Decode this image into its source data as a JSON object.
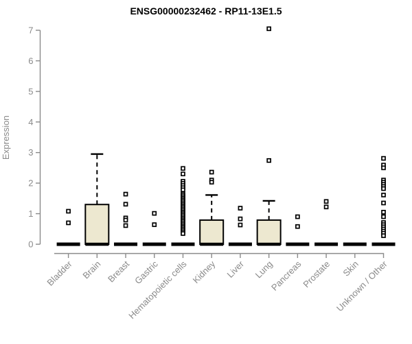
{
  "chart_data": {
    "type": "boxplot",
    "title": "ENSG00000232462 - RP11-13E1.5",
    "ylabel": "Expression",
    "xlabel": "",
    "ylim": [
      0,
      7
    ],
    "yticks": [
      0,
      1,
      2,
      3,
      4,
      5,
      6,
      7
    ],
    "grid": false,
    "legend": null,
    "categories": [
      "Bladder",
      "Brain",
      "Breast",
      "Gastric",
      "Hematopoietic cells",
      "Kidney",
      "Liver",
      "Lung",
      "Pancreas",
      "Prostate",
      "Skin",
      "Unknown / Other"
    ],
    "boxes": [
      {
        "category": "Bladder",
        "q1": 0,
        "median": 0,
        "q3": 0,
        "whisker_low": 0,
        "whisker_high": 0,
        "outliers": [
          1.08,
          0.7
        ]
      },
      {
        "category": "Brain",
        "q1": 0,
        "median": 0,
        "q3": 1.3,
        "whisker_low": 0,
        "whisker_high": 2.95,
        "outliers": []
      },
      {
        "category": "Breast",
        "q1": 0,
        "median": 0,
        "q3": 0,
        "whisker_low": 0,
        "whisker_high": 0,
        "outliers": [
          1.64,
          1.31,
          0.86,
          0.79,
          0.61
        ]
      },
      {
        "category": "Gastric",
        "q1": 0,
        "median": 0,
        "q3": 0,
        "whisker_low": 0,
        "whisker_high": 0,
        "outliers": [
          1.01,
          0.64
        ]
      },
      {
        "category": "Hematopoietic cells",
        "q1": 0,
        "median": 0,
        "q3": 0,
        "whisker_low": 0,
        "whisker_high": 0,
        "outliers": [
          2.48,
          2.3,
          2.06,
          1.99,
          1.92,
          1.85,
          1.78,
          1.65,
          1.6,
          1.55,
          1.5,
          1.45,
          1.4,
          1.35,
          1.3,
          1.25,
          1.2,
          1.15,
          1.1,
          1.05,
          1.0,
          0.95,
          0.9,
          0.85,
          0.8,
          0.75,
          0.7,
          0.65,
          0.6,
          0.55,
          0.5,
          0.45,
          0.4,
          0.35
        ]
      },
      {
        "category": "Kidney",
        "q1": 0,
        "median": 0,
        "q3": 0.79,
        "whisker_low": 0,
        "whisker_high": 1.61,
        "outliers": [
          2.36,
          2.1,
          2.03
        ]
      },
      {
        "category": "Liver",
        "q1": 0,
        "median": 0,
        "q3": 0,
        "whisker_low": 0,
        "whisker_high": 0,
        "outliers": [
          1.18,
          0.83,
          0.63
        ]
      },
      {
        "category": "Lung",
        "q1": 0,
        "median": 0,
        "q3": 0.79,
        "whisker_low": 0,
        "whisker_high": 1.42,
        "outliers": [
          7.05,
          2.74
        ]
      },
      {
        "category": "Pancreas",
        "q1": 0,
        "median": 0,
        "q3": 0,
        "whisker_low": 0,
        "whisker_high": 0,
        "outliers": [
          0.9,
          0.58
        ]
      },
      {
        "category": "Prostate",
        "q1": 0,
        "median": 0,
        "q3": 0,
        "whisker_low": 0,
        "whisker_high": 0,
        "outliers": [
          1.4,
          1.22
        ]
      },
      {
        "category": "Skin",
        "q1": 0,
        "median": 0,
        "q3": 0,
        "whisker_low": 0,
        "whisker_high": 0,
        "outliers": []
      },
      {
        "category": "Unknown / Other",
        "q1": 0,
        "median": 0,
        "q3": 0,
        "whisker_low": 0,
        "whisker_high": 0,
        "outliers": [
          2.81,
          2.59,
          2.5,
          2.1,
          2.03,
          1.96,
          1.89,
          1.82,
          1.61,
          1.35,
          1.05,
          0.9,
          0.71,
          0.64,
          0.57,
          0.5,
          0.43,
          0.36,
          0.28
        ]
      }
    ],
    "colors": {
      "background": "#ffffff",
      "box_fill": "#ede8d0",
      "box_stroke": "#000000",
      "axis": "#8a8a8a",
      "title": "#000000"
    }
  }
}
